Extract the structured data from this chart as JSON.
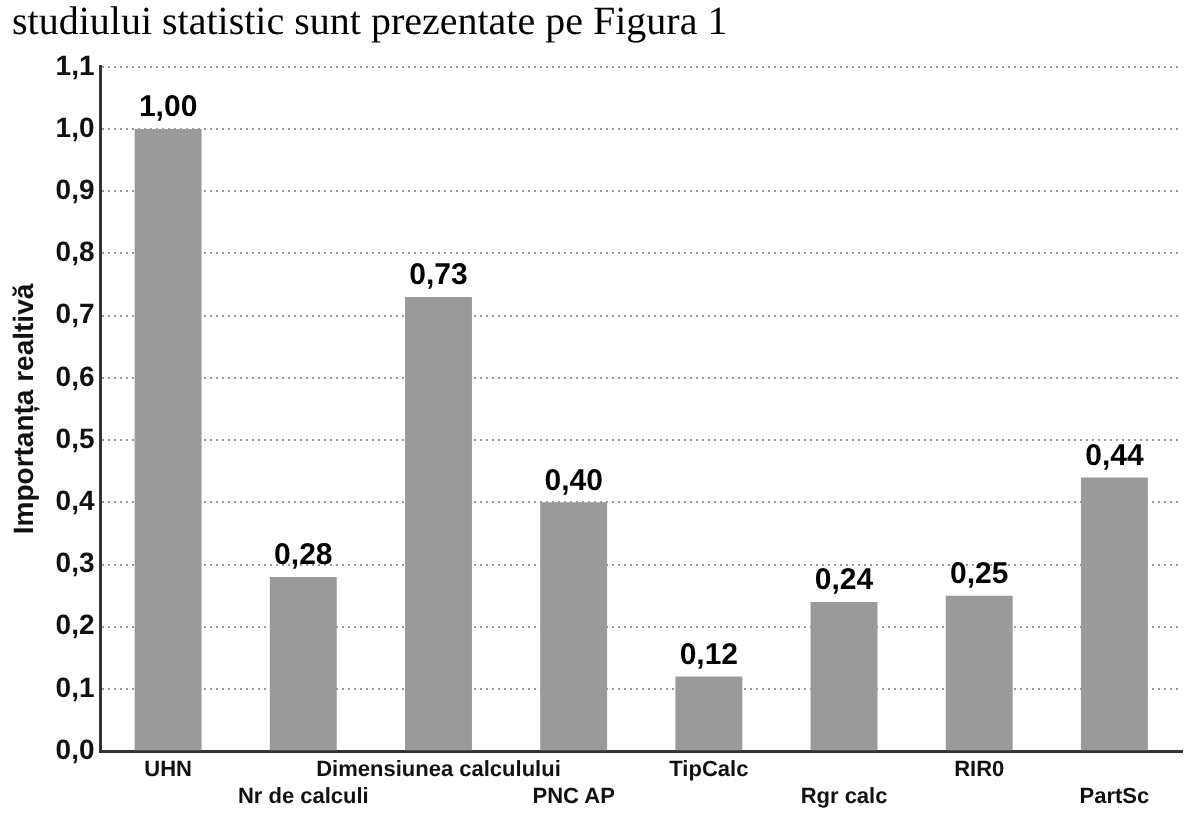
{
  "chart_data": {
    "type": "bar",
    "annotations": [
      "studiului statistic sunt prezentate pe Figura 1"
    ],
    "ylabel": "Importanța realtivă",
    "categories": [
      "UHN",
      "Nr de calculi",
      "Dimensiunea calculului",
      "PNC AP",
      "TipCalc",
      "Rgr calc",
      "RIR0",
      "PartSc"
    ],
    "values": [
      1.0,
      0.28,
      0.73,
      0.4,
      0.12,
      0.24,
      0.25,
      0.44
    ],
    "value_labels": [
      "1,00",
      "0,28",
      "0,73",
      "0,40",
      "0,12",
      "0,24",
      "0,25",
      "0,44"
    ],
    "color": "#9a9a9a",
    "ylim": [
      0,
      1.1
    ],
    "yticks": [
      {
        "value": 0,
        "label": "0,0"
      },
      {
        "value": 0.1,
        "label": "0,1"
      },
      {
        "value": 0.2,
        "label": "0,2"
      },
      {
        "value": 0.3,
        "label": "0,3"
      },
      {
        "value": 0.4,
        "label": "0,4"
      },
      {
        "value": 0.5,
        "label": "0,5"
      },
      {
        "value": 0.6,
        "label": "0,6"
      },
      {
        "value": 0.7,
        "label": "0,7"
      },
      {
        "value": 0.8,
        "label": "0,8"
      },
      {
        "value": 0.9,
        "label": "0,9"
      },
      {
        "value": 1,
        "label": "1,0"
      },
      {
        "value": 1.1,
        "label": "1,1"
      }
    ],
    "grid": "y",
    "legend": false
  }
}
